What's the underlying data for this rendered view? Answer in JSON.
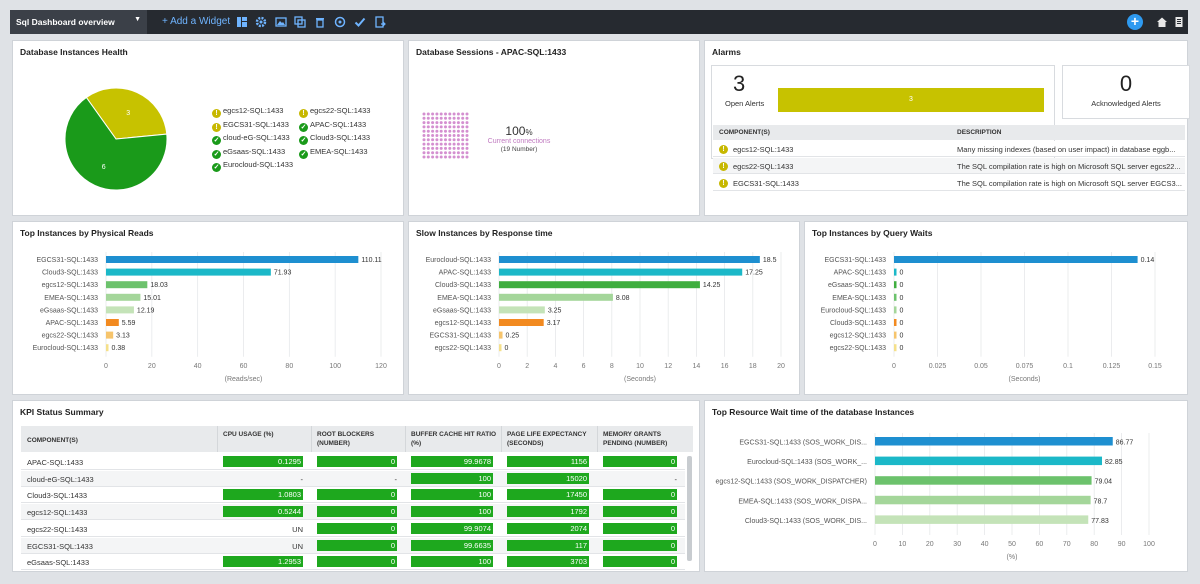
{
  "topbar": {
    "dashboard_name": "Sql Dashboard overview",
    "add_widget_label": "+ Add a Widget",
    "plus_label": "+"
  },
  "health": {
    "title": "Database Instances Health",
    "legend_col1": [
      {
        "name": "egcs12-SQL:1433",
        "status": "warn"
      },
      {
        "name": "EGCS31-SQL:1433",
        "status": "warn"
      },
      {
        "name": "cloud-eG-SQL:1433",
        "status": "ok"
      },
      {
        "name": "eGsaas-SQL:1433",
        "status": "ok"
      },
      {
        "name": "Eurocloud-SQL:1433",
        "status": "ok"
      }
    ],
    "legend_col2": [
      {
        "name": "egcs22-SQL:1433",
        "status": "warn"
      },
      {
        "name": "APAC-SQL:1433",
        "status": "ok"
      },
      {
        "name": "Cloud3-SQL:1433",
        "status": "ok"
      },
      {
        "name": "EMEA-SQL:1433",
        "status": "ok"
      }
    ],
    "warn_color": "#c7c200",
    "ok_color": "#1a9a1a"
  },
  "sessions": {
    "title": "Database Sessions - APAC-SQL:1433",
    "percent": "100",
    "percent_unit": "%",
    "caption": "Current connections",
    "sub_caption": "(19 Number)",
    "dot_color": "#d48fd0"
  },
  "alarms": {
    "title": "Alarms",
    "open_count": "3",
    "open_label": "Open Alerts",
    "open_bar_value": "3",
    "ack_count": "0",
    "ack_label": "Acknowledged Alerts",
    "col_component": "COMPONENT(S)",
    "col_description": "DESCRIPTION",
    "rows": [
      {
        "component": "egcs12-SQL:1433",
        "description": "Many missing indexes (based on user impact) in database eggb..."
      },
      {
        "component": "egcs22-SQL:1433",
        "description": "The SQL compilation rate is high on Microsoft SQL server egcs22..."
      },
      {
        "component": "EGCS31-SQL:1433",
        "description": "The SQL compilation rate is high on Microsoft SQL server EGCS3..."
      }
    ]
  },
  "chart_data": [
    {
      "type": "pie",
      "title": "Database Instances Health",
      "categories": [
        "warning",
        "ok"
      ],
      "values": [
        3,
        6
      ],
      "colors": [
        "#c7c200",
        "#1a9a1a"
      ]
    },
    {
      "type": "bar",
      "title": "Top Instances by Physical Reads",
      "orientation": "horizontal",
      "categories": [
        "EGCS31-SQL:1433",
        "Cloud3-SQL:1433",
        "egcs12-SQL:1433",
        "EMEA-SQL:1433",
        "eGsaas-SQL:1433",
        "APAC-SQL:1433",
        "egcs22-SQL:1433",
        "Eurocloud-SQL:1433"
      ],
      "values": [
        110.11,
        71.93,
        18.03,
        15.01,
        12.19,
        5.59,
        3.13,
        0.38
      ],
      "labels": [
        "110.11",
        "71.93",
        "18.03",
        "15.01",
        "12.19",
        "5.59",
        "3.13",
        "0.38"
      ],
      "colors": [
        "#1e8fd0",
        "#1bb8c8",
        "#6cc26c",
        "#a4d69a",
        "#c4e3b8",
        "#f28a20",
        "#f6c46c",
        "#f5e08a"
      ],
      "xlabel": "(Reads/sec)",
      "xlim": [
        0,
        120
      ],
      "ticks": [
        "0",
        "20",
        "40",
        "60",
        "80",
        "100",
        "120"
      ]
    },
    {
      "type": "bar",
      "title": "Slow Instances by Response time",
      "orientation": "horizontal",
      "categories": [
        "Eurocloud-SQL:1433",
        "APAC-SQL:1433",
        "Cloud3-SQL:1433",
        "EMEA-SQL:1433",
        "eGsaas-SQL:1433",
        "egcs12-SQL:1433",
        "EGCS31-SQL:1433",
        "egcs22-SQL:1433"
      ],
      "values": [
        18.5,
        17.25,
        14.25,
        8.08,
        3.25,
        3.17,
        0.25,
        0
      ],
      "labels": [
        "18.5",
        "17.25",
        "14.25",
        "8.08",
        "3.25",
        "3.17",
        "0.25",
        "0"
      ],
      "colors": [
        "#1e8fd0",
        "#1bb8c8",
        "#3fae3f",
        "#a4d69a",
        "#c4e3b8",
        "#f28a20",
        "#f6c46c",
        "#f5e08a"
      ],
      "xlabel": "(Seconds)",
      "xlim": [
        0,
        20
      ],
      "ticks": [
        "0",
        "2",
        "4",
        "6",
        "8",
        "10",
        "12",
        "14",
        "16",
        "18",
        "20"
      ]
    },
    {
      "type": "bar",
      "title": "Top Instances by Query Waits",
      "orientation": "horizontal",
      "categories": [
        "EGCS31-SQL:1433",
        "APAC-SQL:1433",
        "eGsaas-SQL:1433",
        "EMEA-SQL:1433",
        "Eurocloud-SQL:1433",
        "Cloud3-SQL:1433",
        "egcs12-SQL:1433",
        "egcs22-SQL:1433"
      ],
      "values": [
        0.14,
        0,
        0,
        0,
        0,
        0,
        0,
        0
      ],
      "labels": [
        "0.14",
        "0",
        "0",
        "0",
        "0",
        "0",
        "0",
        "0"
      ],
      "colors": [
        "#1e8fd0",
        "#1bb8c8",
        "#3fae3f",
        "#6cc26c",
        "#a4d69a",
        "#f28a20",
        "#f6c46c",
        "#f5e08a"
      ],
      "xlabel": "(Seconds)",
      "xlim": [
        0,
        0.15
      ],
      "ticks": [
        "0",
        "0.025",
        "0.05",
        "0.075",
        "0.1",
        "0.125",
        "0.15"
      ]
    },
    {
      "type": "bar",
      "title": "Top Resource Wait time of the database Instances",
      "orientation": "horizontal",
      "categories": [
        "EGCS31-SQL:1433 (SOS_WORK_DIS...",
        "Eurocloud-SQL:1433 (SOS_WORK_...",
        "egcs12-SQL:1433 (SOS_WORK_DISPATCHER)",
        "EMEA-SQL:1433 (SOS_WORK_DISPA...",
        "Cloud3-SQL:1433 (SOS_WORK_DIS..."
      ],
      "values": [
        86.77,
        82.85,
        79.04,
        78.7,
        77.83
      ],
      "labels": [
        "86.77",
        "82.85",
        "79.04",
        "78.7",
        "77.83"
      ],
      "colors": [
        "#1e8fd0",
        "#1bb8c8",
        "#6cc26c",
        "#a4d69a",
        "#c4e3b8"
      ],
      "xlabel": "(%)",
      "xlim": [
        0,
        100
      ],
      "ticks": [
        "0",
        "10",
        "20",
        "30",
        "40",
        "50",
        "60",
        "70",
        "80",
        "90",
        "100"
      ]
    }
  ],
  "kpi": {
    "title": "KPI Status Summary",
    "headers": [
      "COMPONENT(S)",
      "CPU USAGE (%)",
      "ROOT BLOCKERS (NUMBER)",
      "BUFFER CACHE HIT RATIO (%)",
      "PAGE LIFE EXPECTANCY (SECONDS)",
      "MEMORY GRANTS PENDING (NUMBER)"
    ],
    "rows": [
      {
        "component": "APAC-SQL:1433",
        "cpu": "0.1295",
        "root": "0",
        "buffer": "99.9678",
        "page": "1156",
        "memory": "0"
      },
      {
        "component": "cloud-eG-SQL:1433",
        "cpu": "-",
        "root": "-",
        "buffer": "100",
        "page": "15020",
        "memory": "-"
      },
      {
        "component": "Cloud3-SQL:1433",
        "cpu": "1.0803",
        "root": "0",
        "buffer": "100",
        "page": "17450",
        "memory": "0"
      },
      {
        "component": "egcs12-SQL:1433",
        "cpu": "0.5244",
        "root": "0",
        "buffer": "100",
        "page": "1792",
        "memory": "0"
      },
      {
        "component": "egcs22-SQL:1433",
        "cpu": "UN",
        "root": "0",
        "buffer": "99.9074",
        "page": "2074",
        "memory": "0"
      },
      {
        "component": "EGCS31-SQL:1433",
        "cpu": "UN",
        "root": "0",
        "buffer": "99.6635",
        "page": "117",
        "memory": "0"
      },
      {
        "component": "eGsaas-SQL:1433",
        "cpu": "1.2953",
        "root": "0",
        "buffer": "100",
        "page": "3703",
        "memory": "0"
      }
    ]
  }
}
